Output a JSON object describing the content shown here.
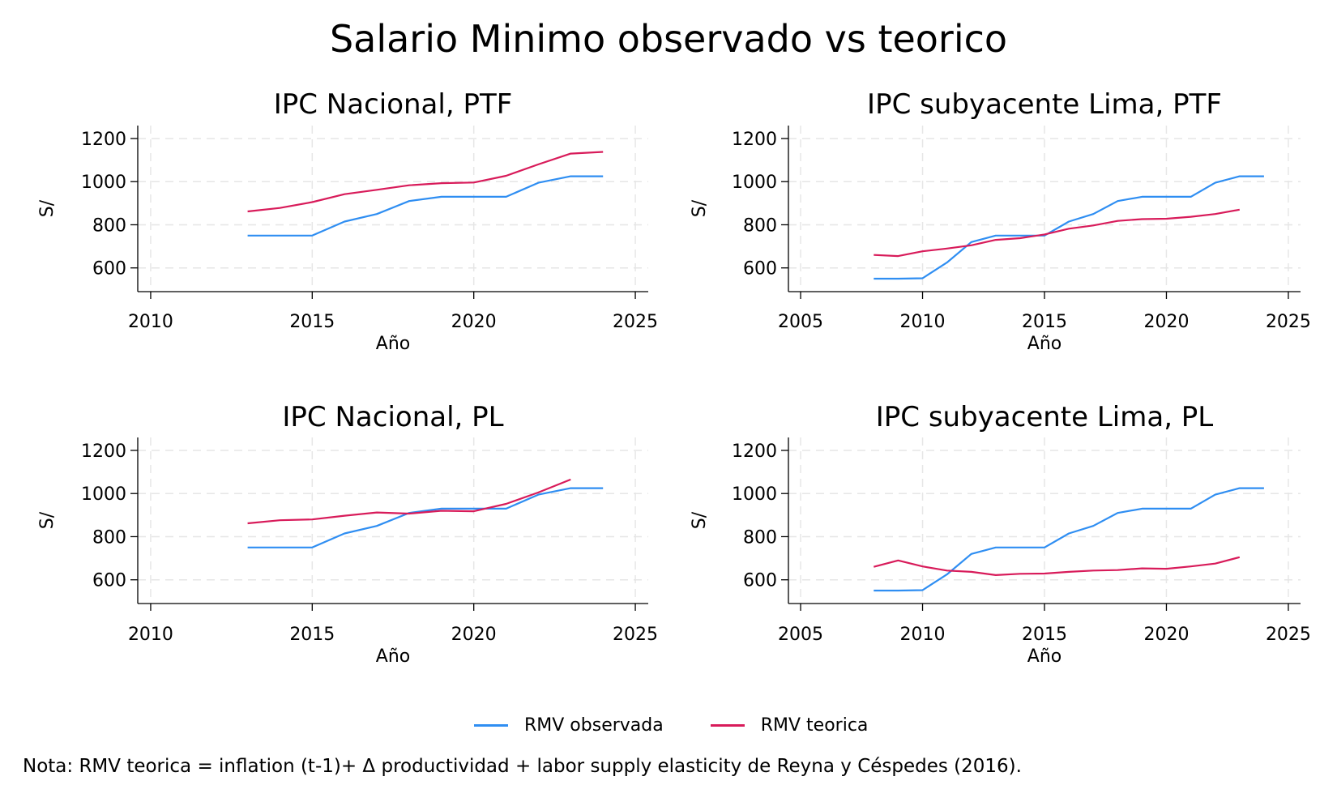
{
  "title": "Salario Minimo observado vs teorico",
  "colors": {
    "observed": "#2f8ef2",
    "theoretical": "#d81b5a",
    "grid": "#e6e6e6"
  },
  "legend": [
    {
      "label": "RMV observada",
      "color": "#2f8ef2"
    },
    {
      "label": "RMV teorica",
      "color": "#d81b5a"
    }
  ],
  "note": "Nota: RMV teorica = inflation (t-1)+ Δ productividad + labor supply elasticity de Reyna y Céspedes (2016).",
  "chart_data": [
    {
      "type": "line",
      "title": "IPC Nacional, PTF",
      "xlabel": "Año",
      "ylabel": "S/",
      "xlim": [
        2009.6,
        2025.4
      ],
      "ylim": [
        490,
        1260
      ],
      "xticks": [
        2010,
        2015,
        2020,
        2025
      ],
      "yticks": [
        600,
        800,
        1000,
        1200
      ],
      "grid": true,
      "series": [
        {
          "name": "RMV observada",
          "color": "#2f8ef2",
          "x": [
            2013,
            2014,
            2015,
            2016,
            2017,
            2018,
            2019,
            2020,
            2021,
            2022,
            2023,
            2024
          ],
          "y": [
            750,
            750,
            750,
            815,
            850,
            910,
            930,
            930,
            930,
            995,
            1025,
            1025
          ]
        },
        {
          "name": "RMV teorica",
          "color": "#d81b5a",
          "x": [
            2013,
            2014,
            2015,
            2016,
            2017,
            2018,
            2019,
            2020,
            2021,
            2022,
            2023,
            2024
          ],
          "y": [
            862,
            878,
            905,
            942,
            962,
            983,
            993,
            996,
            1027,
            1080,
            1130,
            1138
          ]
        }
      ]
    },
    {
      "type": "line",
      "title": "IPC subyacente Lima, PTF",
      "xlabel": "Año",
      "ylabel": "S/",
      "xlim": [
        2004.5,
        2025.5
      ],
      "ylim": [
        490,
        1260
      ],
      "xticks": [
        2005,
        2010,
        2015,
        2020,
        2025
      ],
      "yticks": [
        600,
        800,
        1000,
        1200
      ],
      "grid": true,
      "series": [
        {
          "name": "RMV observada",
          "color": "#2f8ef2",
          "x": [
            2008,
            2009,
            2010,
            2011,
            2012,
            2013,
            2014,
            2015,
            2016,
            2017,
            2018,
            2019,
            2020,
            2021,
            2022,
            2023,
            2024
          ],
          "y": [
            550,
            550,
            552,
            625,
            720,
            750,
            750,
            750,
            815,
            850,
            910,
            930,
            930,
            930,
            995,
            1025,
            1025
          ]
        },
        {
          "name": "RMV teorica",
          "color": "#d81b5a",
          "x": [
            2008,
            2009,
            2010,
            2011,
            2012,
            2013,
            2014,
            2015,
            2016,
            2017,
            2018,
            2019,
            2020,
            2021,
            2022,
            2023
          ],
          "y": [
            660,
            655,
            677,
            690,
            705,
            730,
            738,
            755,
            782,
            797,
            818,
            826,
            828,
            837,
            850,
            870
          ]
        }
      ]
    },
    {
      "type": "line",
      "title": "IPC Nacional, PL",
      "xlabel": "Año",
      "ylabel": "S/",
      "xlim": [
        2009.6,
        2025.4
      ],
      "ylim": [
        490,
        1260
      ],
      "xticks": [
        2010,
        2015,
        2020,
        2025
      ],
      "yticks": [
        600,
        800,
        1000,
        1200
      ],
      "grid": true,
      "series": [
        {
          "name": "RMV observada",
          "color": "#2f8ef2",
          "x": [
            2013,
            2014,
            2015,
            2016,
            2017,
            2018,
            2019,
            2020,
            2021,
            2022,
            2023,
            2024
          ],
          "y": [
            750,
            750,
            750,
            815,
            850,
            910,
            930,
            930,
            930,
            995,
            1025,
            1025
          ]
        },
        {
          "name": "RMV teorica",
          "color": "#d81b5a",
          "x": [
            2013,
            2014,
            2015,
            2016,
            2017,
            2018,
            2019,
            2020,
            2021,
            2022,
            2023
          ],
          "y": [
            862,
            876,
            880,
            897,
            912,
            907,
            920,
            918,
            952,
            1005,
            1065
          ]
        }
      ]
    },
    {
      "type": "line",
      "title": "IPC subyacente Lima, PL",
      "xlabel": "Año",
      "ylabel": "S/",
      "xlim": [
        2004.5,
        2025.5
      ],
      "ylim": [
        490,
        1260
      ],
      "xticks": [
        2005,
        2010,
        2015,
        2020,
        2025
      ],
      "yticks": [
        600,
        800,
        1000,
        1200
      ],
      "grid": true,
      "series": [
        {
          "name": "RMV observada",
          "color": "#2f8ef2",
          "x": [
            2008,
            2009,
            2010,
            2011,
            2012,
            2013,
            2014,
            2015,
            2016,
            2017,
            2018,
            2019,
            2020,
            2021,
            2022,
            2023,
            2024
          ],
          "y": [
            550,
            550,
            552,
            625,
            720,
            750,
            750,
            750,
            815,
            850,
            910,
            930,
            930,
            930,
            995,
            1025,
            1025
          ]
        },
        {
          "name": "RMV teorica",
          "color": "#d81b5a",
          "x": [
            2008,
            2009,
            2010,
            2011,
            2012,
            2013,
            2014,
            2015,
            2016,
            2017,
            2018,
            2019,
            2020,
            2021,
            2022,
            2023
          ],
          "y": [
            660,
            690,
            662,
            643,
            637,
            622,
            628,
            629,
            637,
            643,
            645,
            653,
            651,
            662,
            675,
            705
          ]
        }
      ]
    }
  ]
}
